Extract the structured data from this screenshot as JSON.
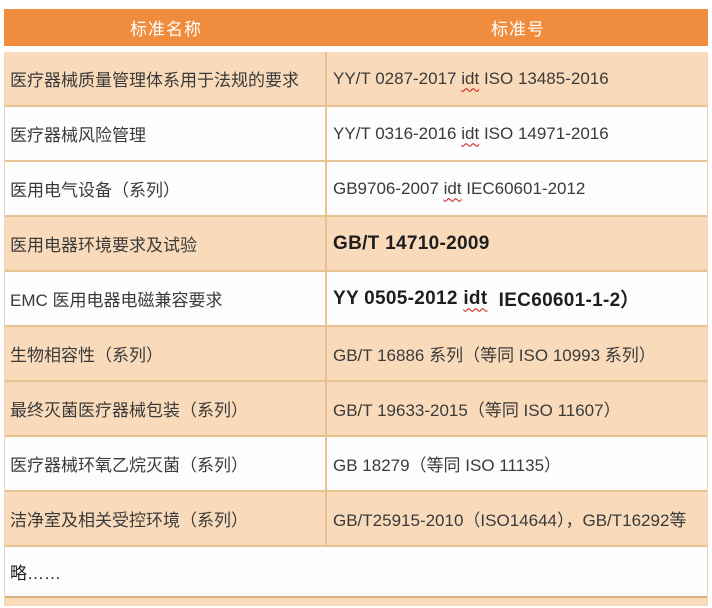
{
  "header": {
    "col_name": "标准名称",
    "col_number": "标准号"
  },
  "rows": [
    {
      "name": "医疗器械质量管理体系用于法规的要求",
      "pre": "YY/T 0287-2017 ",
      "idt": "idt",
      "post": " ISO 13485-2016"
    },
    {
      "name": "医疗器械风险管理",
      "pre": "YY/T 0316-2016 ",
      "idt": "idt",
      "post": " ISO 14971-2016"
    },
    {
      "name": "医用电气设备（系列）",
      "pre": "GB9706-2007 ",
      "idt": "idt",
      "post": " IEC60601-2012"
    },
    {
      "name": "医用电器环境要求及试验",
      "pre": "GB/T 14710-2009",
      "idt": "",
      "post": ""
    },
    {
      "name": "EMC 医用电器电磁兼容要求",
      "pre": "YY 0505-2012 ",
      "idt": "idt",
      "post": "  IEC60601-1-2）"
    },
    {
      "name": "生物相容性（系列）",
      "pre": "GB/T 16886 系列（等同 ISO 10993 系列）",
      "idt": "",
      "post": ""
    },
    {
      "name": "最终灭菌医疗器械包装（系列）",
      "pre": "GB/T 19633-2015（等同 ISO 11607）",
      "idt": "",
      "post": ""
    },
    {
      "name": "医疗器械环氧乙烷灭菌（系列）",
      "pre": "GB 18279（等同 ISO 11135）",
      "idt": "",
      "post": ""
    },
    {
      "name": "洁净室及相关受控环境（系列）",
      "pre": "GB/T25915-2010（ISO14644），GB/T16292等",
      "idt": "",
      "post": ""
    }
  ],
  "footer": {
    "note": "略……"
  },
  "colors": {
    "header_bg": "#F08C3E",
    "row_alt_bg": "#F9DBBB",
    "row_bg": "#FDFDFD",
    "border": "#E9C291",
    "header_text": "#FFFFFF",
    "body_text": "#3A3A3A",
    "idt_underline": "#CC1111"
  }
}
